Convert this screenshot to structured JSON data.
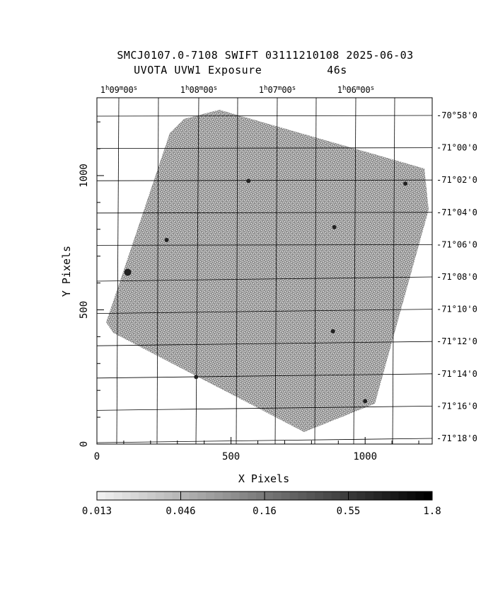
{
  "title": {
    "line1": "SMCJ0107.0-7108 SWIFT 03111210108 2025-06-03",
    "line2_left": "UVOTA UVW1 Exposure",
    "line2_right": "46s"
  },
  "chart_data": {
    "type": "heatmap",
    "xlabel": "X Pixels",
    "ylabel": "Y Pixels",
    "xlim": [
      0,
      1250
    ],
    "ylim": [
      0,
      1290
    ],
    "x_ticks": [
      "0",
      "500",
      "1000"
    ],
    "y_ticks": [
      "0",
      "500",
      "1000"
    ],
    "ra_labels": [
      {
        "h": "1",
        "m": "09",
        "s": "00"
      },
      {
        "h": "1",
        "m": "08",
        "s": "00"
      },
      {
        "h": "1",
        "m": "07",
        "s": "00"
      },
      {
        "h": "1",
        "m": "06",
        "s": "00"
      }
    ],
    "dec_labels": [
      "-70°58'0",
      "-71°00'0",
      "-71°02'0",
      "-71°04'0",
      "-71°06'0",
      "-71°08'0",
      "-71°10'0",
      "-71°12'0",
      "-71°14'0",
      "-71°16'0",
      "-71°18'0"
    ],
    "colorbar": {
      "tick_labels": [
        "0.013",
        "0.046",
        "0.16",
        "0.55",
        "1.8"
      ],
      "scale": "log"
    },
    "bright_sources": [
      {
        "x": 115,
        "y": 640
      },
      {
        "x": 880,
        "y": 420
      },
      {
        "x": 885,
        "y": 808
      },
      {
        "x": 565,
        "y": 980
      },
      {
        "x": 1150,
        "y": 970
      },
      {
        "x": 260,
        "y": 760
      },
      {
        "x": 370,
        "y": 250
      },
      {
        "x": 1000,
        "y": 160
      }
    ]
  },
  "colors": {
    "background": "#ffffff",
    "foreground": "#000000",
    "image_fill": "#8c8c8c"
  }
}
